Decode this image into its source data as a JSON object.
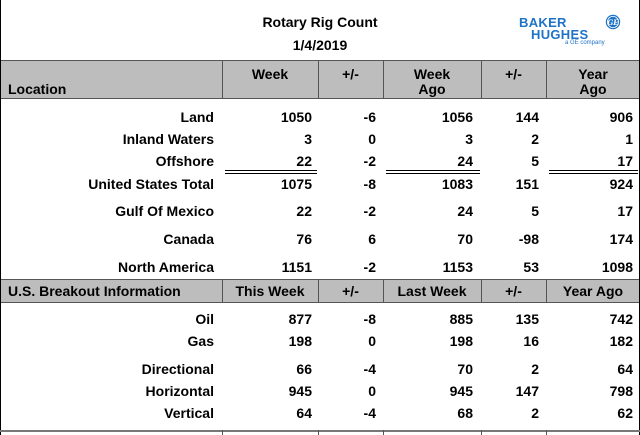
{
  "title": "Rotary Rig Count",
  "date": "1/4/2019",
  "logo": {
    "line1": "BAKER",
    "line2": "HUGHES",
    "sub": "a GE company",
    "mark": "GE",
    "color": "#1f73c6"
  },
  "header": {
    "location": "Location",
    "week": "Week",
    "plusminus1": "+/-",
    "week_ago_l1": "Week",
    "week_ago_l2": "Ago",
    "plusminus2": "+/-",
    "year_ago_l1": "Year",
    "year_ago_l2": "Ago"
  },
  "rows": [
    {
      "label": "Land",
      "week": "1050",
      "chg": "-6",
      "week_ago": "1056",
      "chg_y": "144",
      "year_ago": "906"
    },
    {
      "label": "Inland Waters",
      "week": "3",
      "chg": "0",
      "week_ago": "3",
      "chg_y": "2",
      "year_ago": "1"
    },
    {
      "label": "Offshore",
      "week": "22",
      "chg": "-2",
      "week_ago": "24",
      "chg_y": "5",
      "year_ago": "17"
    },
    {
      "label": "United States Total",
      "week": "1075",
      "chg": "-8",
      "week_ago": "1083",
      "chg_y": "151",
      "year_ago": "924"
    },
    {
      "label": "Gulf Of Mexico",
      "week": "22",
      "chg": "-2",
      "week_ago": "24",
      "chg_y": "5",
      "year_ago": "17"
    },
    {
      "label": "Canada",
      "week": "76",
      "chg": "6",
      "week_ago": "70",
      "chg_y": "-98",
      "year_ago": "174"
    },
    {
      "label": "North America",
      "week": "1151",
      "chg": "-2",
      "week_ago": "1153",
      "chg_y": "53",
      "year_ago": "1098"
    }
  ],
  "breakout_header": {
    "label": "U.S. Breakout Information",
    "this_week": "This Week",
    "plusminus1": "+/-",
    "last_week": "Last Week",
    "plusminus2": "+/-",
    "year_ago": "Year Ago"
  },
  "breakout_rows": [
    {
      "label": "Oil",
      "week": "877",
      "chg": "-8",
      "week_ago": "885",
      "chg_y": "135",
      "year_ago": "742"
    },
    {
      "label": "Gas",
      "week": "198",
      "chg": "0",
      "week_ago": "198",
      "chg_y": "16",
      "year_ago": "182"
    },
    {
      "label": "Directional",
      "week": "66",
      "chg": "-4",
      "week_ago": "70",
      "chg_y": "2",
      "year_ago": "64"
    },
    {
      "label": "Horizontal",
      "week": "945",
      "chg": "0",
      "week_ago": "945",
      "chg_y": "147",
      "year_ago": "798"
    },
    {
      "label": "Vertical",
      "week": "64",
      "chg": "-4",
      "week_ago": "68",
      "chg_y": "2",
      "year_ago": "62"
    }
  ]
}
